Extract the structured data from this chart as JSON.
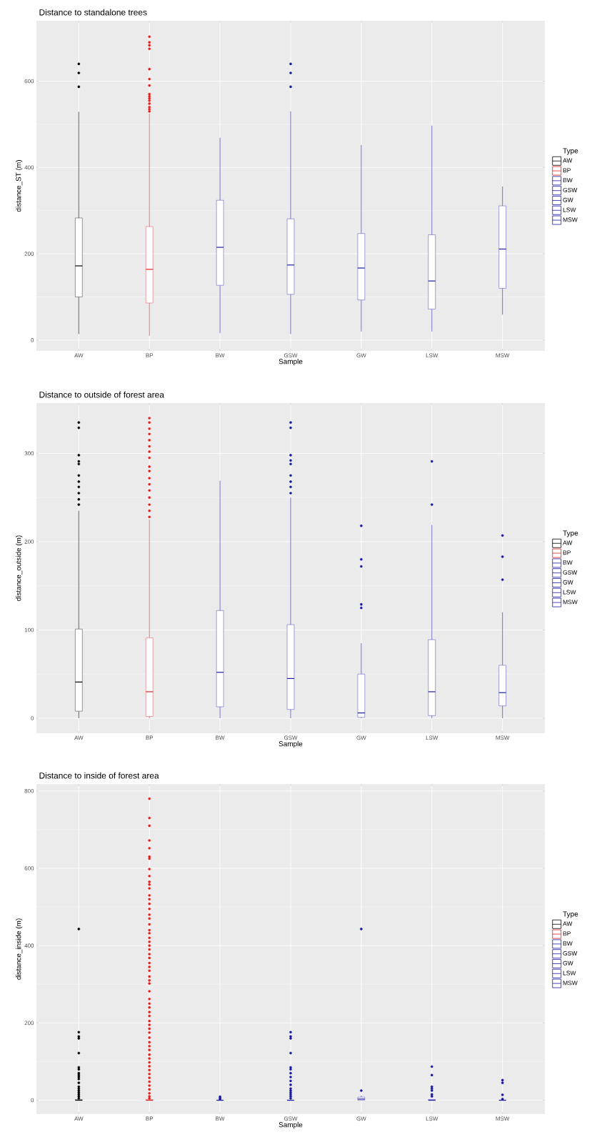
{
  "chart_data": [
    {
      "type": "box",
      "title": "Distance to standalone trees",
      "xlabel": "Sample",
      "ylabel": "distance_ST (m)",
      "legend_title": "Type",
      "legend": "right",
      "grid": true,
      "categories": [
        "AW",
        "BP",
        "BW",
        "GSW",
        "GW",
        "LSW",
        "MSW"
      ],
      "ylim": [
        -25,
        740
      ],
      "yticks": [
        0,
        200,
        400,
        600
      ],
      "series": [
        {
          "name": "AW",
          "color": "#000000",
          "boxes": [
            {
              "low": 14,
              "q1": 100,
              "median": 172,
              "q3": 283,
              "high": 529,
              "outliers": [
                587,
                619,
                640
              ]
            },
            null,
            null,
            null,
            null,
            null,
            null
          ]
        },
        {
          "name": "BP",
          "color": "#e0201b",
          "boxes": [
            null,
            {
              "low": 10,
              "q1": 86,
              "median": 164,
              "q3": 263,
              "high": 525,
              "outliers": [
                530,
                535,
                540,
                548,
                555,
                560,
                565,
                570,
                590,
                605,
                628,
                675,
                683,
                690,
                703
              ]
            },
            null,
            null,
            null,
            null,
            null
          ]
        },
        {
          "name": "BW",
          "color": "#1a1aa6",
          "boxes": [
            null,
            null,
            {
              "low": 16,
              "q1": 127,
              "median": 215,
              "q3": 324,
              "high": 469
            },
            null,
            null,
            null,
            null
          ]
        },
        {
          "name": "GSW",
          "color": "#1a1aa6",
          "boxes": [
            null,
            null,
            null,
            {
              "low": 14,
              "q1": 106,
              "median": 174,
              "q3": 281,
              "high": 530,
              "outliers": [
                587,
                619,
                640
              ]
            },
            null,
            null,
            null
          ]
        },
        {
          "name": "GW",
          "color": "#1a1aa6",
          "boxes": [
            null,
            null,
            null,
            null,
            {
              "low": 20,
              "q1": 93,
              "median": 167,
              "q3": 247,
              "high": 452
            },
            null,
            null
          ]
        },
        {
          "name": "LSW",
          "color": "#1a1aa6",
          "boxes": [
            null,
            null,
            null,
            null,
            null,
            {
              "low": 20,
              "q1": 72,
              "median": 137,
              "q3": 244,
              "high": 497
            },
            null
          ]
        },
        {
          "name": "MSW",
          "color": "#1a1aa6",
          "boxes": [
            null,
            null,
            null,
            null,
            null,
            null,
            {
              "low": 59,
              "q1": 120,
              "median": 211,
              "q3": 311,
              "high": 356
            }
          ]
        }
      ]
    },
    {
      "type": "box",
      "title": "Distance to outside of forest area",
      "xlabel": "Sample",
      "ylabel": "distance_outside (m)",
      "legend_title": "Type",
      "legend": "right",
      "grid": true,
      "categories": [
        "AW",
        "BP",
        "BW",
        "GSW",
        "GW",
        "LSW",
        "MSW"
      ],
      "ylim": [
        -17,
        357
      ],
      "yticks": [
        0,
        100,
        200,
        300
      ],
      "series": [
        {
          "name": "AW",
          "color": "#000000",
          "boxes": [
            {
              "low": 0,
              "q1": 8,
              "median": 41,
              "q3": 101,
              "high": 235,
              "outliers": [
                242,
                248,
                255,
                262,
                268,
                275,
                288,
                291,
                298,
                329,
                335
              ]
            },
            null,
            null,
            null,
            null,
            null,
            null
          ]
        },
        {
          "name": "BP",
          "color": "#e0201b",
          "boxes": [
            null,
            {
              "low": 0,
              "q1": 2,
              "median": 30,
              "q3": 91,
              "high": 225,
              "outliers": [
                228,
                235,
                242,
                250,
                258,
                265,
                272,
                280,
                285,
                295,
                302,
                308,
                315,
                322,
                328,
                335,
                340
              ]
            },
            null,
            null,
            null,
            null,
            null
          ]
        },
        {
          "name": "BW",
          "color": "#1a1aa6",
          "boxes": [
            null,
            null,
            {
              "low": 0,
              "q1": 13,
              "median": 52,
              "q3": 122,
              "high": 269
            },
            null,
            null,
            null,
            null
          ]
        },
        {
          "name": "GSW",
          "color": "#1a1aa6",
          "boxes": [
            null,
            null,
            null,
            {
              "low": 0,
              "q1": 10,
              "median": 45,
              "q3": 106,
              "high": 250,
              "outliers": [
                255,
                262,
                268,
                275,
                288,
                292,
                298,
                329,
                335
              ]
            },
            null,
            null,
            null
          ]
        },
        {
          "name": "GW",
          "color": "#1a1aa6",
          "boxes": [
            null,
            null,
            null,
            null,
            {
              "low": 0,
              "q1": 1,
              "median": 6,
              "q3": 50,
              "high": 85,
              "outliers": [
                125,
                129,
                172,
                180,
                218
              ]
            },
            null,
            null
          ]
        },
        {
          "name": "LSW",
          "color": "#1a1aa6",
          "boxes": [
            null,
            null,
            null,
            null,
            null,
            {
              "low": 0,
              "q1": 3,
              "median": 30,
              "q3": 89,
              "high": 219,
              "outliers": [
                242,
                291
              ]
            },
            null
          ]
        },
        {
          "name": "MSW",
          "color": "#1a1aa6",
          "boxes": [
            null,
            null,
            null,
            null,
            null,
            null,
            {
              "low": 0,
              "q1": 14,
              "median": 29,
              "q3": 60,
              "high": 120,
              "outliers": [
                157,
                183,
                207
              ]
            }
          ]
        }
      ]
    },
    {
      "type": "box",
      "title": "Distance to inside of forest area",
      "xlabel": "Sample",
      "ylabel": "distance_inside (m)",
      "legend_title": "Type",
      "legend": "right",
      "grid": true,
      "categories": [
        "AW",
        "BP",
        "BW",
        "GSW",
        "GW",
        "LSW",
        "MSW"
      ],
      "ylim": [
        -36,
        818
      ],
      "yticks": [
        0,
        200,
        400,
        600,
        800
      ],
      "series": [
        {
          "name": "AW",
          "color": "#000000",
          "boxes": [
            {
              "low": 0,
              "q1": 0,
              "median": 0,
              "q3": 2,
              "high": 3,
              "outliers": [
                5,
                10,
                15,
                20,
                25,
                30,
                35,
                45,
                55,
                60,
                65,
                70,
                80,
                85,
                122,
                160,
                165,
                176,
                443
              ]
            },
            null,
            null,
            null,
            null,
            null,
            null
          ]
        },
        {
          "name": "BP",
          "color": "#e0201b",
          "boxes": [
            null,
            {
              "low": 0,
              "q1": 0,
              "median": 0,
              "q3": 2,
              "high": 4,
              "outliers": [
                5,
                10,
                18,
                28,
                38,
                48,
                58,
                68,
                78,
                88,
                98,
                108,
                118,
                130,
                140,
                150,
                162,
                175,
                185,
                195,
                205,
                218,
                228,
                240,
                250,
                262,
                282,
                302,
                310,
                320,
                335,
                345,
                355,
                368,
                378,
                390,
                400,
                410,
                420,
                432,
                440,
                455,
                470,
                480,
                495,
                508,
                520,
                530,
                548,
                558,
                565,
                580,
                598,
                625,
                630,
                652,
                672,
                710,
                730,
                780
              ]
            },
            null,
            null,
            null,
            null,
            null
          ]
        },
        {
          "name": "BW",
          "color": "#1a1aa6",
          "boxes": [
            null,
            null,
            {
              "low": 0,
              "q1": 0,
              "median": 0,
              "q3": 0,
              "high": 0,
              "outliers": [
                3,
                6,
                9
              ]
            },
            null,
            null,
            null,
            null
          ]
        },
        {
          "name": "GSW",
          "color": "#1a1aa6",
          "boxes": [
            null,
            null,
            null,
            {
              "low": 0,
              "q1": 0,
              "median": 0,
              "q3": 0,
              "high": 0,
              "outliers": [
                5,
                10,
                15,
                20,
                25,
                30,
                40,
                50,
                60,
                70,
                80,
                85,
                122,
                160,
                165,
                176
              ]
            },
            null,
            null,
            null
          ]
        },
        {
          "name": "GW",
          "color": "#1a1aa6",
          "boxes": [
            null,
            null,
            null,
            null,
            {
              "low": 0,
              "q1": 0,
              "median": 3,
              "q3": 8,
              "high": 12,
              "outliers": [
                25,
                443
              ]
            },
            null,
            null
          ]
        },
        {
          "name": "LSW",
          "color": "#1a1aa6",
          "boxes": [
            null,
            null,
            null,
            null,
            null,
            {
              "low": 0,
              "q1": 0,
              "median": 0,
              "q3": 2,
              "high": 3,
              "outliers": [
                10,
                15,
                25,
                30,
                35,
                65,
                87
              ]
            },
            null
          ]
        },
        {
          "name": "MSW",
          "color": "#1a1aa6",
          "boxes": [
            null,
            null,
            null,
            null,
            null,
            null,
            {
              "low": 0,
              "q1": 0,
              "median": 0,
              "q3": 0,
              "high": 0,
              "outliers": [
                3,
                14,
                45,
                52
              ]
            }
          ]
        }
      ]
    }
  ]
}
